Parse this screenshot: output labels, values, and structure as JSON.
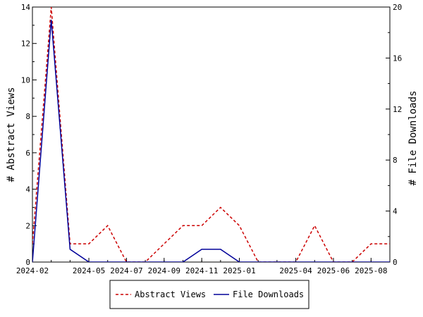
{
  "chart_data": {
    "type": "line",
    "x_labels": [
      "2024-02",
      "2024-05",
      "2024-07",
      "2024-09",
      "2024-11",
      "2025-01",
      "2025-04",
      "2025-06",
      "2025-08"
    ],
    "y_left": {
      "label": "# Abstract Views",
      "ylim": [
        0,
        14
      ],
      "ticks": [
        "0",
        "2",
        "4",
        "6",
        "8",
        "10",
        "12",
        "14"
      ]
    },
    "y_right": {
      "label": "# File Downloads",
      "ylim": [
        0,
        20
      ],
      "ticks": [
        "0",
        "4",
        "8",
        "12",
        "16",
        "20"
      ]
    },
    "months": [
      "2024-02",
      "2024-03",
      "2024-04",
      "2024-05",
      "2024-06",
      "2024-07",
      "2024-08",
      "2024-09",
      "2024-10",
      "2024-11",
      "2024-12",
      "2025-01",
      "2025-02",
      "2025-03",
      "2025-04",
      "2025-05",
      "2025-06",
      "2025-07",
      "2025-08",
      "2025-09"
    ],
    "series": [
      {
        "name": "Abstract Views",
        "axis": "left",
        "color": "#cc0000",
        "style": "dashed",
        "values": [
          1,
          14,
          1,
          1,
          2,
          0,
          0,
          1,
          2,
          2,
          3,
          2,
          0,
          0,
          0,
          2,
          0,
          0,
          1,
          1
        ]
      },
      {
        "name": "File Downloads",
        "axis": "right",
        "color": "#000099",
        "style": "solid",
        "values": [
          0,
          19,
          1,
          0,
          0,
          0,
          0,
          0,
          0,
          1,
          1,
          0,
          0,
          0,
          0,
          0,
          0,
          0,
          0,
          0
        ]
      }
    ],
    "legend": "bottom",
    "grid": false
  }
}
